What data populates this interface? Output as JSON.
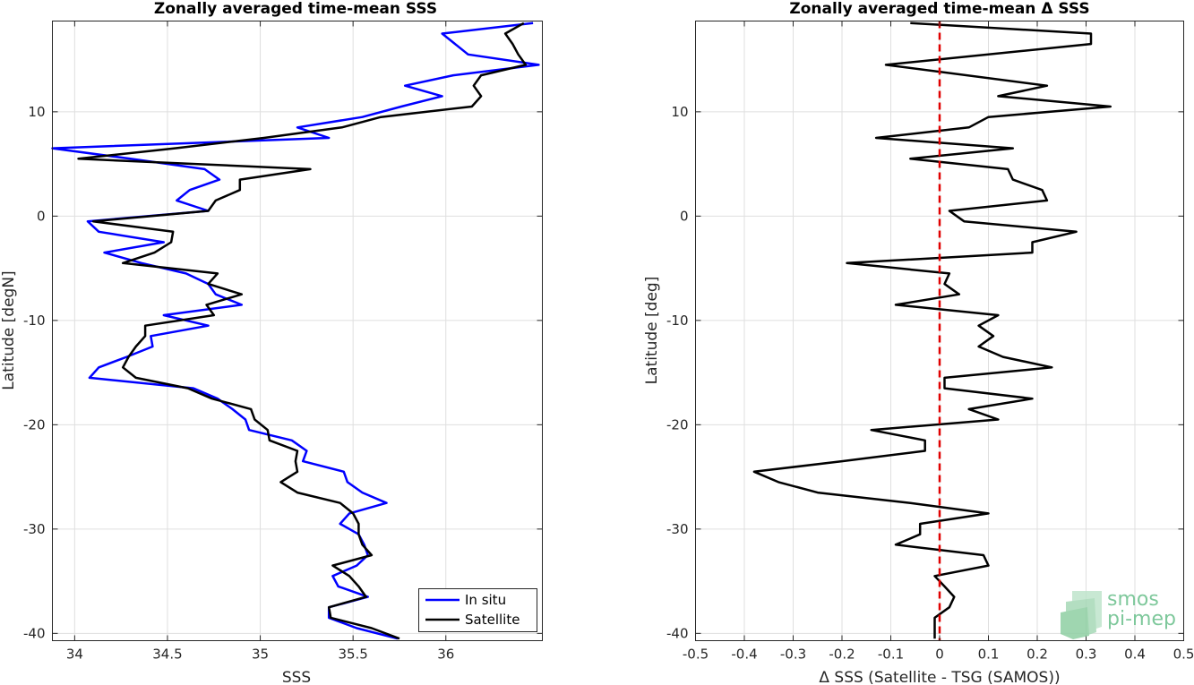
{
  "chart_data": [
    {
      "type": "line",
      "title": "Zonally averaged time-mean SSS",
      "xlabel": "SSS",
      "ylabel": "Latitude [degN]",
      "xlim": [
        33.88,
        36.52
      ],
      "ylim": [
        -40.7,
        18.7
      ],
      "xticks": [
        34,
        34.5,
        35,
        35.5,
        36
      ],
      "xtick_labels": [
        "34",
        "34.5",
        "35",
        "35.5",
        "36"
      ],
      "yticks": [
        10,
        0,
        -10,
        -20,
        -30,
        -40
      ],
      "ytick_labels": [
        "10",
        "0",
        "-10",
        "-20",
        "-30",
        "-40"
      ],
      "grid": true,
      "legend_position": "bottom-right",
      "series": [
        {
          "name": "In situ",
          "color": "#0000ff",
          "y": [
            18.5,
            17.5,
            15.5,
            14.5,
            13.5,
            12.5,
            11.5,
            10.5,
            9.5,
            8.5,
            7.5,
            6.5,
            5.5,
            4.5,
            3.5,
            2.5,
            1.5,
            0.5,
            -0.5,
            -1.5,
            -2.5,
            -3.5,
            -4.5,
            -5.5,
            -6.5,
            -7.5,
            -8.5,
            -9.5,
            -10.5,
            -11.5,
            -12.5,
            -13.5,
            -14.5,
            -15.5,
            -16.5,
            -17.5,
            -18.5,
            -19.5,
            -20.5,
            -21.5,
            -22.5,
            -23.5,
            -24.5,
            -25.5,
            -26.5,
            -27.5,
            -28.5,
            -29.5,
            -30.5,
            -31.5,
            -32.5,
            -33.5,
            -34.5,
            -35.5,
            -36.5,
            -37.5,
            -38.5,
            -39.5,
            -40.5
          ],
          "x": [
            36.47,
            35.98,
            36.12,
            36.5,
            36.04,
            35.78,
            35.98,
            35.76,
            35.55,
            35.2,
            35.37,
            33.88,
            34.3,
            34.7,
            34.78,
            34.62,
            34.55,
            34.72,
            34.07,
            34.13,
            34.48,
            34.16,
            34.36,
            34.6,
            34.72,
            34.76,
            34.9,
            34.48,
            34.72,
            34.41,
            34.42,
            34.28,
            34.13,
            34.08,
            34.64,
            34.77,
            34.85,
            34.92,
            34.94,
            35.17,
            35.25,
            35.23,
            35.45,
            35.47,
            35.55,
            35.68,
            35.48,
            35.43,
            35.53,
            35.56,
            35.58,
            35.52,
            35.39,
            35.42,
            35.58,
            35.37,
            35.37,
            35.52,
            35.74
          ]
        },
        {
          "name": "Satellite",
          "color": "#000000",
          "y": [
            18.5,
            17.5,
            16.5,
            15.5,
            14.5,
            13.5,
            12.5,
            11.5,
            10.5,
            9.5,
            8.5,
            7.5,
            6.5,
            5.5,
            4.5,
            3.5,
            2.5,
            1.5,
            0.5,
            -0.5,
            -1.5,
            -2.5,
            -3.5,
            -4.5,
            -5.5,
            -6.5,
            -7.5,
            -8.5,
            -9.5,
            -10.5,
            -11.5,
            -12.5,
            -13.5,
            -14.5,
            -15.5,
            -16.5,
            -17.5,
            -18.5,
            -19.5,
            -20.5,
            -21.5,
            -22.5,
            -23.5,
            -24.5,
            -25.5,
            -26.5,
            -27.5,
            -28.5,
            -29.5,
            -30.5,
            -31.5,
            -32.5,
            -33.5,
            -34.5,
            -35.5,
            -36.5,
            -37.5,
            -38.5,
            -39.5,
            -40.5
          ],
          "x": [
            36.42,
            36.32,
            36.36,
            36.39,
            36.43,
            36.19,
            36.15,
            36.19,
            36.14,
            35.65,
            35.44,
            35.02,
            34.54,
            34.02,
            35.27,
            34.89,
            34.89,
            34.76,
            34.72,
            34.1,
            34.53,
            34.52,
            34.43,
            34.26,
            34.77,
            34.72,
            34.9,
            34.71,
            34.75,
            34.38,
            34.38,
            34.33,
            34.29,
            34.26,
            34.33,
            34.61,
            34.74,
            34.95,
            34.97,
            35.04,
            35.05,
            35.2,
            35.19,
            35.2,
            35.11,
            35.2,
            35.43,
            35.5,
            35.53,
            35.53,
            35.55,
            35.6,
            35.39,
            35.48,
            35.53,
            35.57,
            35.37,
            35.38,
            35.6,
            35.75
          ]
        }
      ]
    },
    {
      "type": "line",
      "title": "Zonally averaged time-mean Δ SSS",
      "xlabel": "Δ SSS (Satellite - TSG (SAMOS))",
      "ylabel": "Latitude [deg]",
      "xlim": [
        -0.5,
        0.5
      ],
      "ylim": [
        -40.7,
        18.7
      ],
      "xticks": [
        -0.5,
        -0.4,
        -0.3,
        -0.2,
        -0.1,
        0,
        0.1,
        0.2,
        0.3,
        0.4,
        0.5
      ],
      "xtick_labels": [
        "-0.5",
        "-0.4",
        "-0.3",
        "-0.2",
        "-0.1",
        "0",
        "0.1",
        "0.2",
        "0.3",
        "0.4",
        "0.5"
      ],
      "yticks": [
        10,
        0,
        -10,
        -20,
        -30,
        -40
      ],
      "ytick_labels": [
        "10",
        "0",
        "-10",
        "-20",
        "-30",
        "-40"
      ],
      "grid": true,
      "reference_line": {
        "x": 0,
        "color": "#e00000",
        "style": "dashed"
      },
      "series": [
        {
          "color": "#000000",
          "y": [
            18.5,
            17.5,
            16.5,
            14.5,
            12.5,
            11.5,
            10.5,
            9.5,
            8.5,
            7.5,
            6.5,
            5.5,
            4.5,
            3.5,
            2.5,
            1.5,
            0.5,
            -0.5,
            -1.5,
            -2.5,
            -3.5,
            -4.5,
            -5.5,
            -6.5,
            -7.5,
            -8.5,
            -9.5,
            -10.5,
            -11.5,
            -12.5,
            -13.5,
            -14.5,
            -15.5,
            -16.5,
            -17.5,
            -18.5,
            -19.5,
            -20.5,
            -21.5,
            -22.5,
            -23.5,
            -24.5,
            -25.5,
            -26.5,
            -27.5,
            -28.5,
            -29.5,
            -30.5,
            -31.5,
            -32.5,
            -33.5,
            -34.5,
            -35.5,
            -36.5,
            -37.5,
            -38.5,
            -39.5,
            -40.5
          ],
          "x": [
            -0.06,
            0.31,
            0.31,
            -0.11,
            0.22,
            0.12,
            0.35,
            0.1,
            0.06,
            -0.13,
            0.15,
            -0.06,
            0.14,
            0.15,
            0.21,
            0.22,
            0.02,
            0.05,
            0.28,
            0.19,
            0.19,
            -0.19,
            0.02,
            0.01,
            0.04,
            -0.09,
            0.12,
            0.08,
            0.11,
            0.08,
            0.13,
            0.23,
            0.01,
            0.01,
            0.19,
            0.06,
            0.12,
            -0.14,
            -0.03,
            -0.03,
            -0.2,
            -0.38,
            -0.33,
            -0.25,
            -0.06,
            0.1,
            -0.04,
            -0.04,
            -0.09,
            0.09,
            0.1,
            -0.01,
            0.01,
            0.03,
            0.02,
            -0.01,
            -0.01,
            -0.01
          ]
        }
      ]
    }
  ],
  "watermark": {
    "line1": "smos",
    "line2": "pi-mep",
    "color": "#7ec89b"
  }
}
